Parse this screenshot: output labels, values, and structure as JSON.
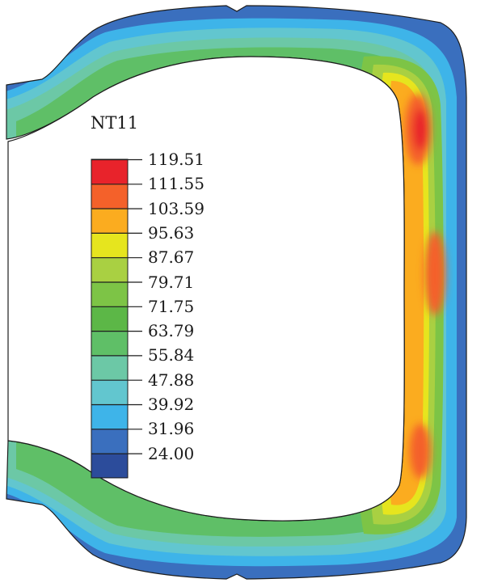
{
  "legend": {
    "title": "NT11",
    "ticks": [
      "119.51",
      "111.55",
      "103.59",
      "95.63",
      "87.67",
      "79.71",
      "71.75",
      "63.79",
      "55.84",
      "47.88",
      "39.92",
      "31.96",
      "24.00"
    ],
    "band_colors": [
      "#e8232b",
      "#f4612a",
      "#fbac1f",
      "#e6e51e",
      "#a9d042",
      "#7dc446",
      "#5cb747",
      "#5fbf67",
      "#6cc8a6",
      "#62c6cf",
      "#3eb4e9",
      "#3a6fbe",
      "#2c4c9b"
    ]
  }
}
